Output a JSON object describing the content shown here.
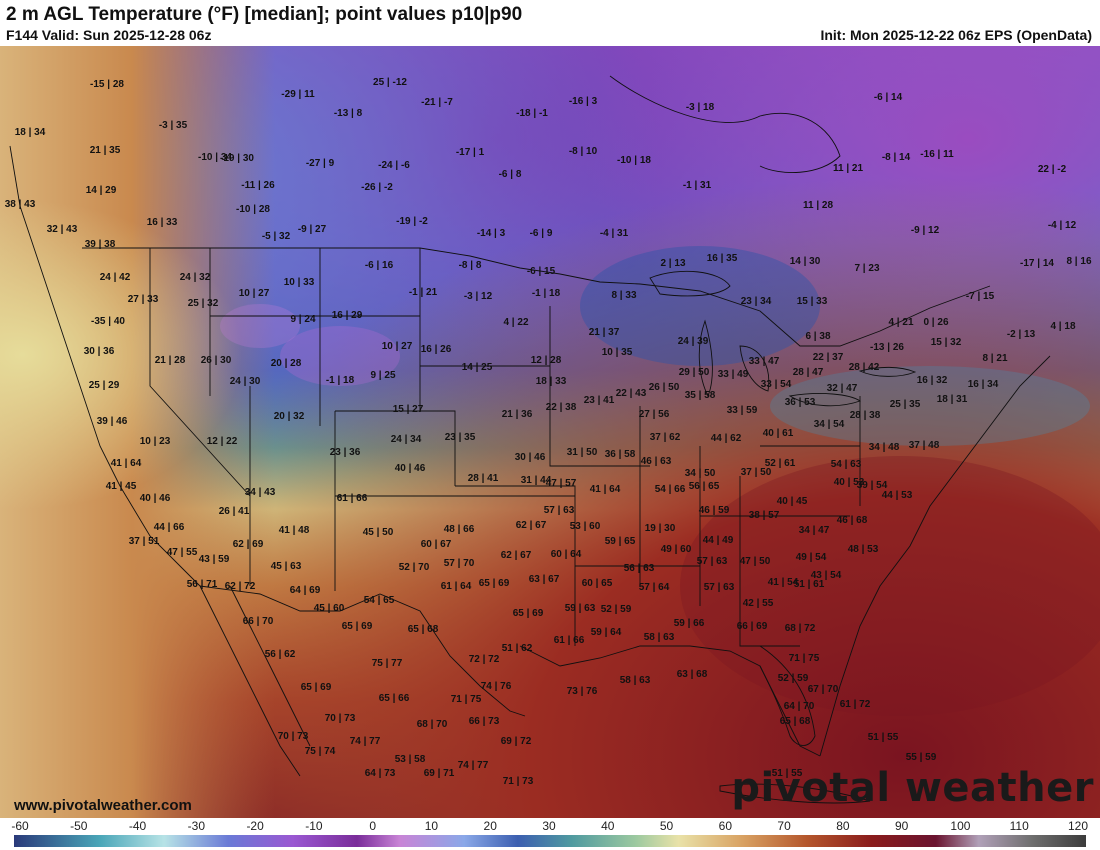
{
  "header": {
    "title": "2 m AGL Temperature (°F) [median]; point values p10|p90",
    "valid": "F144 Valid: Sun 2025-12-28 06z",
    "init": "Init: Mon 2025-12-22 06z EPS (OpenData)"
  },
  "footer": {
    "website": "www.pivotalweather.com",
    "logo": "pivotal weather"
  },
  "colorbar": {
    "ticks": [
      "-60",
      "-50",
      "-40",
      "-30",
      "-20",
      "-10",
      "0",
      "10",
      "20",
      "30",
      "40",
      "50",
      "60",
      "70",
      "80",
      "90",
      "100",
      "110",
      "120"
    ]
  },
  "points": [
    "-15|28",
    "-29|11",
    "25|-12",
    "-21|-7",
    "-16|3",
    "-3|18",
    "-6|14",
    "18|34",
    "-3|35",
    "-13|8",
    "-18|-1",
    "21|35",
    "-10|34",
    "-19|30",
    "-27|9",
    "-24|-6",
    "-17|1",
    "-8|10",
    "-10|18",
    "-8|14",
    "-16|11",
    "22|-2",
    "14|29",
    "-11|26",
    "-6|8",
    "11|21",
    "38|43",
    "-26|-2",
    "-1|31",
    "16|33",
    "-10|28",
    "32|43",
    "-19|-2",
    "11|28",
    "-9|27",
    "-5|32",
    "-9|12",
    "-14|3",
    "-6|9",
    "-4|31",
    "-4|12",
    "39|38",
    "-6|16",
    "-8|8",
    "-6|15",
    "2|13",
    "16|35",
    "14|30",
    "7|23",
    "-17|14",
    "8|16",
    "24|42",
    "24|32",
    "10|33",
    "-1|21",
    "-3|12",
    "-1|18",
    "8|33",
    "27|33",
    "25|32",
    "10|27",
    "23|34",
    "15|33",
    "-7|15",
    "-35|40",
    "9|24",
    "16|29",
    "4|22",
    "4|21",
    "0|26",
    "-2|13",
    "4|18",
    "21|37",
    "6|38",
    "30|36",
    "10|27",
    "16|26",
    "24|39",
    "-13|26",
    "15|32",
    "21|28",
    "26|30",
    "20|28",
    "12|28",
    "10|35",
    "22|37",
    "8|21",
    "25|29",
    "24|30",
    "-1|18",
    "9|25",
    "14|25",
    "18|33",
    "29|50",
    "33|49",
    "33|47",
    "28|47",
    "28|42",
    "16|32",
    "16|34",
    "22|43",
    "26|50",
    "33|54",
    "32|47",
    "35|58",
    "23|41",
    "36|53",
    "25|35",
    "18|31",
    "22|38",
    "27|56",
    "33|59",
    "39|46",
    "20|32",
    "15|27",
    "21|36",
    "28|38",
    "10|23",
    "12|22",
    "24|34",
    "23|35",
    "37|62",
    "44|62",
    "40|61",
    "34|54",
    "34|48",
    "37|48",
    "23|36",
    "30|46",
    "31|50",
    "36|58",
    "46|63",
    "52|61",
    "41|64",
    "40|46",
    "28|41",
    "31|44",
    "34|50",
    "54|63",
    "37|50",
    "41|45",
    "56|65",
    "54|66",
    "40|53",
    "39|54",
    "44|53",
    "34|43",
    "41|64",
    "47|57",
    "40|45",
    "40|46",
    "26|41",
    "44|66",
    "61|66",
    "57|63",
    "46|59",
    "38|57",
    "46|68",
    "48|66",
    "62|67",
    "53|60",
    "19|30",
    "34|47",
    "41|48",
    "45|50",
    "37|51",
    "62|69",
    "60|67",
    "59|65",
    "49|60",
    "44|49",
    "48|53",
    "47|55",
    "43|59",
    "45|63",
    "52|70",
    "57|70",
    "62|67",
    "60|64",
    "56|63",
    "57|63",
    "47|50",
    "49|54",
    "43|54",
    "56|71",
    "62|72",
    "64|69",
    "63|67",
    "60|65",
    "57|64",
    "57|63",
    "41|54",
    "45|60",
    "54|65",
    "61|64",
    "65|69",
    "65|69",
    "59|63",
    "52|59",
    "42|55",
    "51|61",
    "66|70",
    "65|69",
    "65|68",
    "61|66",
    "59|64",
    "58|63",
    "59|66",
    "66|69",
    "68|72",
    "56|62",
    "51|62",
    "72|72",
    "71|75",
    "75|77",
    "74|76",
    "73|76",
    "58|63",
    "63|68",
    "52|59",
    "67|70",
    "65|66",
    "71|75",
    "64|70",
    "61|72",
    "65|68",
    "65|69",
    "70|73",
    "68|70",
    "66|73",
    "70|73",
    "75|74",
    "74|77",
    "69|72",
    "51|55",
    "55|59",
    "71|73",
    "53|58",
    "74|77",
    "64|73",
    "69|71",
    "51|55"
  ]
}
